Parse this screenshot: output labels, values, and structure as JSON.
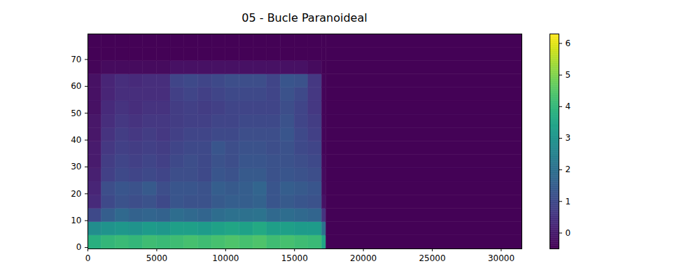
{
  "chart_data": {
    "type": "heatmap",
    "title": "05 - Bucle Paranoideal",
    "x_edges": [
      0,
      1000,
      2000,
      3000,
      4000,
      5000,
      6000,
      7000,
      8000,
      9000,
      10000,
      11000,
      12000,
      13000,
      14000,
      15000,
      16000,
      17000,
      17300,
      31500
    ],
    "y_edges": [
      -0.5,
      4.5,
      9.5,
      14.5,
      19.5,
      24.5,
      29.5,
      34.5,
      39.5,
      44.5,
      49.5,
      54.5,
      59.5,
      64.5,
      69.5,
      74.5,
      79.5
    ],
    "values": [
      [
        3.8,
        4.0,
        4.1,
        4.0,
        4.2,
        4.1,
        4.2,
        4.3,
        4.2,
        4.3,
        4.4,
        4.3,
        4.4,
        4.2,
        4.3,
        4.2,
        4.1,
        3.5,
        -0.45
      ],
      [
        2.8,
        3.0,
        3.1,
        3.0,
        3.2,
        3.1,
        3.3,
        3.3,
        3.2,
        3.4,
        3.5,
        3.4,
        3.6,
        3.3,
        3.3,
        3.2,
        3.2,
        2.0,
        -0.45
      ],
      [
        1.0,
        1.5,
        1.8,
        1.6,
        1.7,
        1.6,
        1.9,
        1.8,
        1.7,
        1.9,
        2.0,
        2.0,
        2.1,
        1.8,
        1.9,
        1.8,
        1.7,
        0.5,
        -0.45
      ],
      [
        0.3,
        1.0,
        1.2,
        1.1,
        1.2,
        1.0,
        1.3,
        1.2,
        1.2,
        1.4,
        1.5,
        1.5,
        1.6,
        1.3,
        1.4,
        1.3,
        1.2,
        -0.2,
        -0.45
      ],
      [
        0.2,
        1.1,
        1.3,
        1.2,
        1.4,
        1.1,
        1.3,
        1.3,
        1.2,
        1.5,
        1.4,
        1.5,
        1.7,
        1.3,
        1.5,
        1.4,
        1.3,
        -0.3,
        -0.45
      ],
      [
        0.1,
        0.8,
        1.0,
        0.9,
        1.0,
        0.9,
        1.1,
        1.1,
        1.0,
        1.3,
        1.2,
        1.4,
        1.4,
        1.2,
        1.3,
        1.2,
        1.1,
        -0.3,
        -0.45
      ],
      [
        0.0,
        0.7,
        0.9,
        0.8,
        0.9,
        0.8,
        1.0,
        1.1,
        1.0,
        1.2,
        1.1,
        1.3,
        1.3,
        1.2,
        1.2,
        1.1,
        1.0,
        -0.35,
        -0.45
      ],
      [
        0.0,
        0.6,
        0.8,
        0.7,
        0.8,
        0.7,
        0.9,
        1.0,
        1.0,
        1.3,
        1.1,
        1.2,
        1.2,
        1.1,
        1.2,
        1.0,
        0.9,
        -0.4,
        -0.45
      ],
      [
        -0.1,
        0.5,
        0.7,
        0.6,
        0.7,
        0.6,
        0.8,
        0.9,
        0.9,
        1.0,
        1.0,
        1.1,
        1.1,
        1.1,
        1.3,
        1.0,
        0.8,
        -0.4,
        -0.45
      ],
      [
        -0.1,
        0.4,
        0.6,
        0.5,
        0.6,
        0.6,
        0.7,
        0.8,
        0.8,
        0.9,
        0.9,
        1.0,
        1.0,
        1.0,
        1.2,
        0.9,
        0.7,
        -0.4,
        -0.45
      ],
      [
        -0.2,
        0.3,
        0.5,
        0.4,
        0.5,
        0.5,
        0.7,
        0.8,
        0.7,
        0.8,
        0.9,
        0.9,
        0.9,
        0.9,
        1.1,
        0.9,
        0.6,
        -0.4,
        -0.45
      ],
      [
        -0.2,
        0.2,
        0.4,
        0.4,
        0.4,
        0.4,
        0.8,
        0.9,
        0.8,
        0.9,
        1.0,
        1.0,
        1.0,
        0.9,
        1.2,
        1.0,
        0.6,
        -0.4,
        -0.45
      ],
      [
        -0.2,
        0.2,
        0.4,
        0.3,
        0.4,
        0.4,
        0.9,
        1.0,
        0.9,
        1.0,
        1.1,
        1.1,
        1.1,
        0.9,
        1.3,
        1.2,
        0.6,
        -0.4,
        -0.45
      ],
      [
        -0.4,
        -0.3,
        -0.3,
        -0.3,
        -0.3,
        -0.3,
        -0.2,
        -0.2,
        -0.2,
        -0.2,
        -0.2,
        -0.2,
        -0.2,
        -0.2,
        -0.2,
        -0.2,
        -0.3,
        -0.45,
        -0.45
      ],
      [
        -0.45,
        -0.45,
        -0.45,
        -0.45,
        -0.45,
        -0.45,
        -0.45,
        -0.45,
        -0.45,
        -0.45,
        -0.45,
        -0.45,
        -0.45,
        -0.45,
        -0.45,
        -0.45,
        -0.45,
        -0.45,
        -0.45
      ],
      [
        -0.45,
        -0.45,
        -0.45,
        -0.45,
        -0.45,
        -0.45,
        -0.45,
        -0.45,
        -0.45,
        -0.45,
        -0.45,
        -0.45,
        -0.45,
        -0.45,
        -0.45,
        -0.45,
        -0.45,
        -0.45,
        -0.45
      ]
    ],
    "xlim": [
      0,
      31500
    ],
    "xticks": [
      0,
      5000,
      10000,
      15000,
      20000,
      25000,
      30000
    ],
    "ylim": [
      -0.5,
      79.5
    ],
    "yticks": [
      0,
      10,
      20,
      30,
      40,
      50,
      60,
      70
    ],
    "colorbar": {
      "lim": [
        -0.5,
        6.3
      ],
      "ticks": [
        0,
        1,
        2,
        3,
        4,
        5,
        6
      ]
    }
  }
}
